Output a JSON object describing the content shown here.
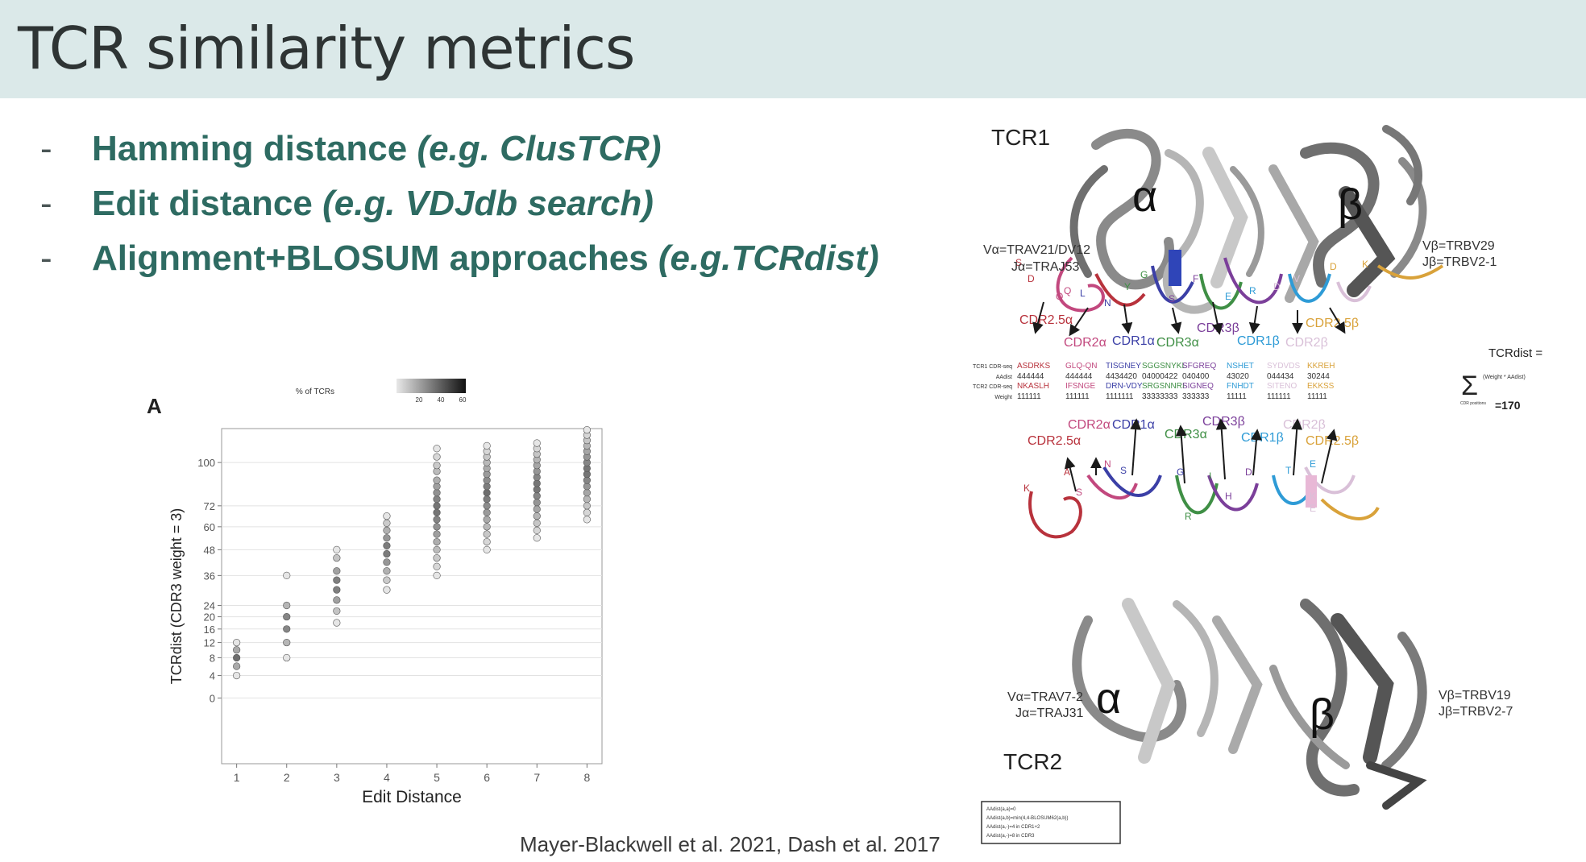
{
  "slide": {
    "title": "TCR similarity metrics",
    "bullets": [
      {
        "dash": "-",
        "main": "Hamming distance ",
        "example": "(e.g. ClusTCR)"
      },
      {
        "dash": "-",
        "main": "Edit distance ",
        "example": "(e.g. VDJdb search)"
      },
      {
        "dash": "-",
        "main": "Alignment+BLOSUM approaches ",
        "example": "(e.g.TCRdist)"
      }
    ],
    "citation": "Mayer-Blackwell et al. 2021, Dash et al. 2017"
  },
  "chart_data": {
    "type": "scatter",
    "panel_label": "A",
    "xlabel": "Edit Distance",
    "ylabel": "TCRdist (CDR3 weight = 3)",
    "legend": {
      "title": "% of TCRs",
      "ticks": [
        20,
        40,
        60
      ],
      "placement": "top"
    },
    "x_ticks": [
      1,
      2,
      3,
      4,
      5,
      6,
      7,
      8
    ],
    "y_ticks": [
      0,
      4,
      8,
      12,
      16,
      20,
      24,
      36,
      48,
      60,
      72,
      100
    ],
    "xlim": [
      0.7,
      8.3
    ],
    "ylim": [
      -5,
      125
    ],
    "grid": true,
    "series": [
      {
        "x": 1,
        "values": [
          4,
          6,
          8,
          10,
          12
        ]
      },
      {
        "x": 2,
        "values": [
          8,
          12,
          16,
          20,
          24,
          36
        ]
      },
      {
        "x": 3,
        "values": [
          18,
          22,
          26,
          30,
          34,
          38,
          44,
          48
        ]
      },
      {
        "x": 4,
        "values": [
          30,
          34,
          38,
          42,
          46,
          50,
          54,
          58,
          62,
          66
        ]
      },
      {
        "x": 5,
        "values": [
          36,
          40,
          44,
          48,
          52,
          56,
          60,
          64,
          68,
          72,
          76,
          80,
          84,
          88,
          94,
          98,
          104,
          110
        ]
      },
      {
        "x": 6,
        "values": [
          48,
          52,
          56,
          60,
          64,
          68,
          72,
          76,
          80,
          84,
          88,
          92,
          96,
          100,
          104,
          108,
          112
        ]
      },
      {
        "x": 7,
        "values": [
          54,
          58,
          62,
          66,
          70,
          74,
          78,
          82,
          86,
          90,
          94,
          98,
          102,
          106,
          110,
          114
        ]
      },
      {
        "x": 8,
        "values": [
          64,
          68,
          72,
          76,
          80,
          84,
          88,
          92,
          96,
          100,
          104,
          108,
          112,
          116,
          120,
          124
        ]
      }
    ]
  },
  "structure": {
    "tcr1_label": "TCR1",
    "tcr2_label": "TCR2",
    "tcr1_alpha_genes": [
      "Vα=TRAV21/DV12",
      "Jα=TRAJ53"
    ],
    "tcr1_beta_genes": [
      "Vβ=TRBV29",
      "Jβ=TRBV2-1"
    ],
    "tcr2_alpha_genes": [
      "Vα=TRAV7-2",
      "Jα=TRAJ31"
    ],
    "tcr2_beta_genes": [
      "Vβ=TRBV19",
      "Jβ=TRBV2-7"
    ],
    "alpha_glyph": "α",
    "beta_glyph": "β",
    "cdr_labels_top": [
      "CDR2.5α",
      "CDR2α",
      "CDR1α",
      "CDR3α",
      "CDR3β",
      "CDR1β",
      "CDR2β",
      "CDR2.5β"
    ],
    "cdr_labels_bottom": [
      "CDR2.5α",
      "CDR2α",
      "CDR1α",
      "CDR3α",
      "CDR3β",
      "CDR1β",
      "CDR2β",
      "CDR2.5β"
    ],
    "cdr_colors": [
      "#b8323c",
      "#c2487e",
      "#3b3fa6",
      "#3f8f45",
      "#7b3f9a",
      "#2e9bd6",
      "#d9c0d8",
      "#d9a23a"
    ],
    "alignment_row_labels": [
      "TCR1 CDR-seq",
      "AAdist",
      "TCR2 CDR-seq",
      "Weight"
    ],
    "alignment_rows": [
      [
        "ASDRKS",
        "GLQ-QN",
        "TISGNEY",
        "SGGSNYKL",
        "SFGREQ",
        "NSHET",
        "SYDVDS",
        "KKREH"
      ],
      [
        "444444",
        "444444",
        "4434420",
        "04000422",
        "040400",
        "43020",
        "044434",
        "30244"
      ],
      [
        "NKASLH",
        "IFSNGE",
        "DRN-VDY",
        "SRGSNNRI",
        "SIGNEQ",
        "FNHDT",
        "SITENO",
        "EKKSS"
      ],
      [
        "111111",
        "111111",
        "1111111",
        "33333333",
        "333333",
        "11111",
        "111111",
        "11111"
      ]
    ],
    "formula_title": "TCRdist =",
    "formula_sigma": "Σ",
    "formula_term": "(Weight * AAdist)",
    "formula_sub": "CDR positions",
    "formula_result": "=170",
    "residues_top": [
      "S",
      "D",
      "Q",
      "Q",
      "L",
      "N",
      "Y",
      "G",
      "S",
      "F",
      "E",
      "R",
      "D",
      "V",
      "D",
      "K"
    ],
    "residues_bottom": [
      "K",
      "A",
      "S",
      "N",
      "S",
      "G",
      "R",
      "I",
      "D",
      "H",
      "T",
      "E",
      "K",
      "E"
    ],
    "legend_box_lines": [
      "AAdist(a,a)=0",
      "AAdist(a,b)=min(4,4-BLOSUM62(a,b))",
      "AAdist(a,-)=4 in CDR1+2",
      "AAdist(a,-)=8 in CDR3"
    ]
  }
}
